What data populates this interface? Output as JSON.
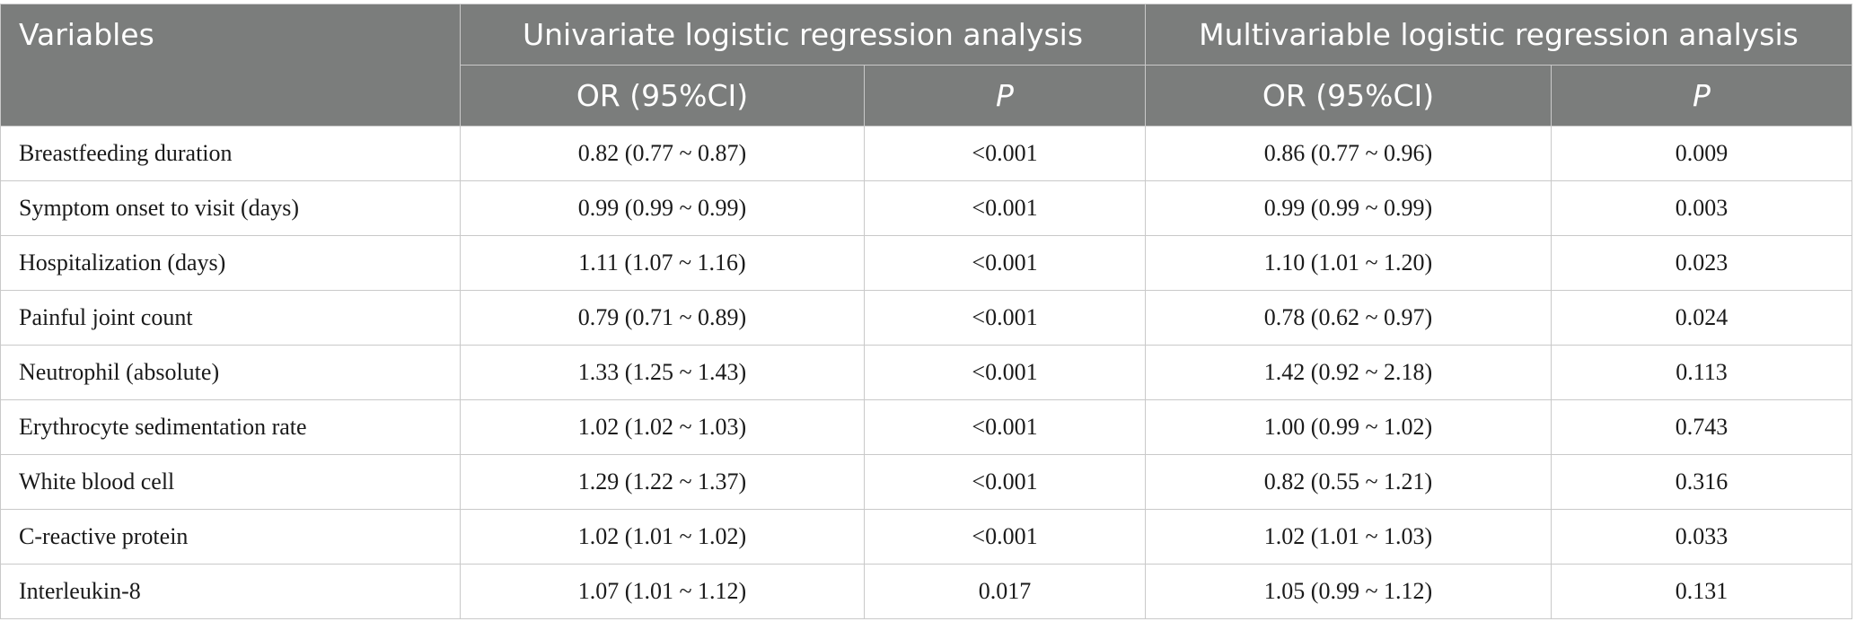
{
  "headers": {
    "variables": "Variables",
    "univariate": "Univariate logistic regression analysis",
    "multivariable": "Multivariable logistic regression analysis",
    "or_ci": "OR (95%CI)",
    "p": "P"
  },
  "rows": [
    {
      "variable": "Breastfeeding duration",
      "uni_or": "0.82 (0.77 ~ 0.87)",
      "uni_p": "<0.001",
      "multi_or": "0.86 (0.77 ~ 0.96)",
      "multi_p": "0.009"
    },
    {
      "variable": "Symptom onset to visit (days)",
      "uni_or": "0.99 (0.99 ~ 0.99)",
      "uni_p": "<0.001",
      "multi_or": "0.99 (0.99 ~ 0.99)",
      "multi_p": "0.003"
    },
    {
      "variable": "Hospitalization (days)",
      "uni_or": "1.11 (1.07 ~ 1.16)",
      "uni_p": "<0.001",
      "multi_or": "1.10 (1.01 ~ 1.20)",
      "multi_p": "0.023"
    },
    {
      "variable": "Painful joint count",
      "uni_or": "0.79 (0.71 ~ 0.89)",
      "uni_p": "<0.001",
      "multi_or": "0.78 (0.62 ~ 0.97)",
      "multi_p": "0.024"
    },
    {
      "variable": "Neutrophil (absolute)",
      "uni_or": "1.33 (1.25 ~ 1.43)",
      "uni_p": "<0.001",
      "multi_or": "1.42 (0.92 ~ 2.18)",
      "multi_p": "0.113"
    },
    {
      "variable": "Erythrocyte sedimentation rate",
      "uni_or": "1.02 (1.02 ~ 1.03)",
      "uni_p": "<0.001",
      "multi_or": "1.00 (0.99 ~ 1.02)",
      "multi_p": "0.743"
    },
    {
      "variable": "White blood cell",
      "uni_or": "1.29 (1.22 ~ 1.37)",
      "uni_p": "<0.001",
      "multi_or": "0.82 (0.55 ~ 1.21)",
      "multi_p": "0.316"
    },
    {
      "variable": "C-reactive protein",
      "uni_or": "1.02 (1.01 ~ 1.02)",
      "uni_p": "<0.001",
      "multi_or": "1.02 (1.01 ~ 1.03)",
      "multi_p": "0.033"
    },
    {
      "variable": "Interleukin-8",
      "uni_or": "1.07 (1.01 ~ 1.12)",
      "uni_p": "0.017",
      "multi_or": "1.05 (0.99 ~ 1.12)",
      "multi_p": "0.131"
    }
  ]
}
